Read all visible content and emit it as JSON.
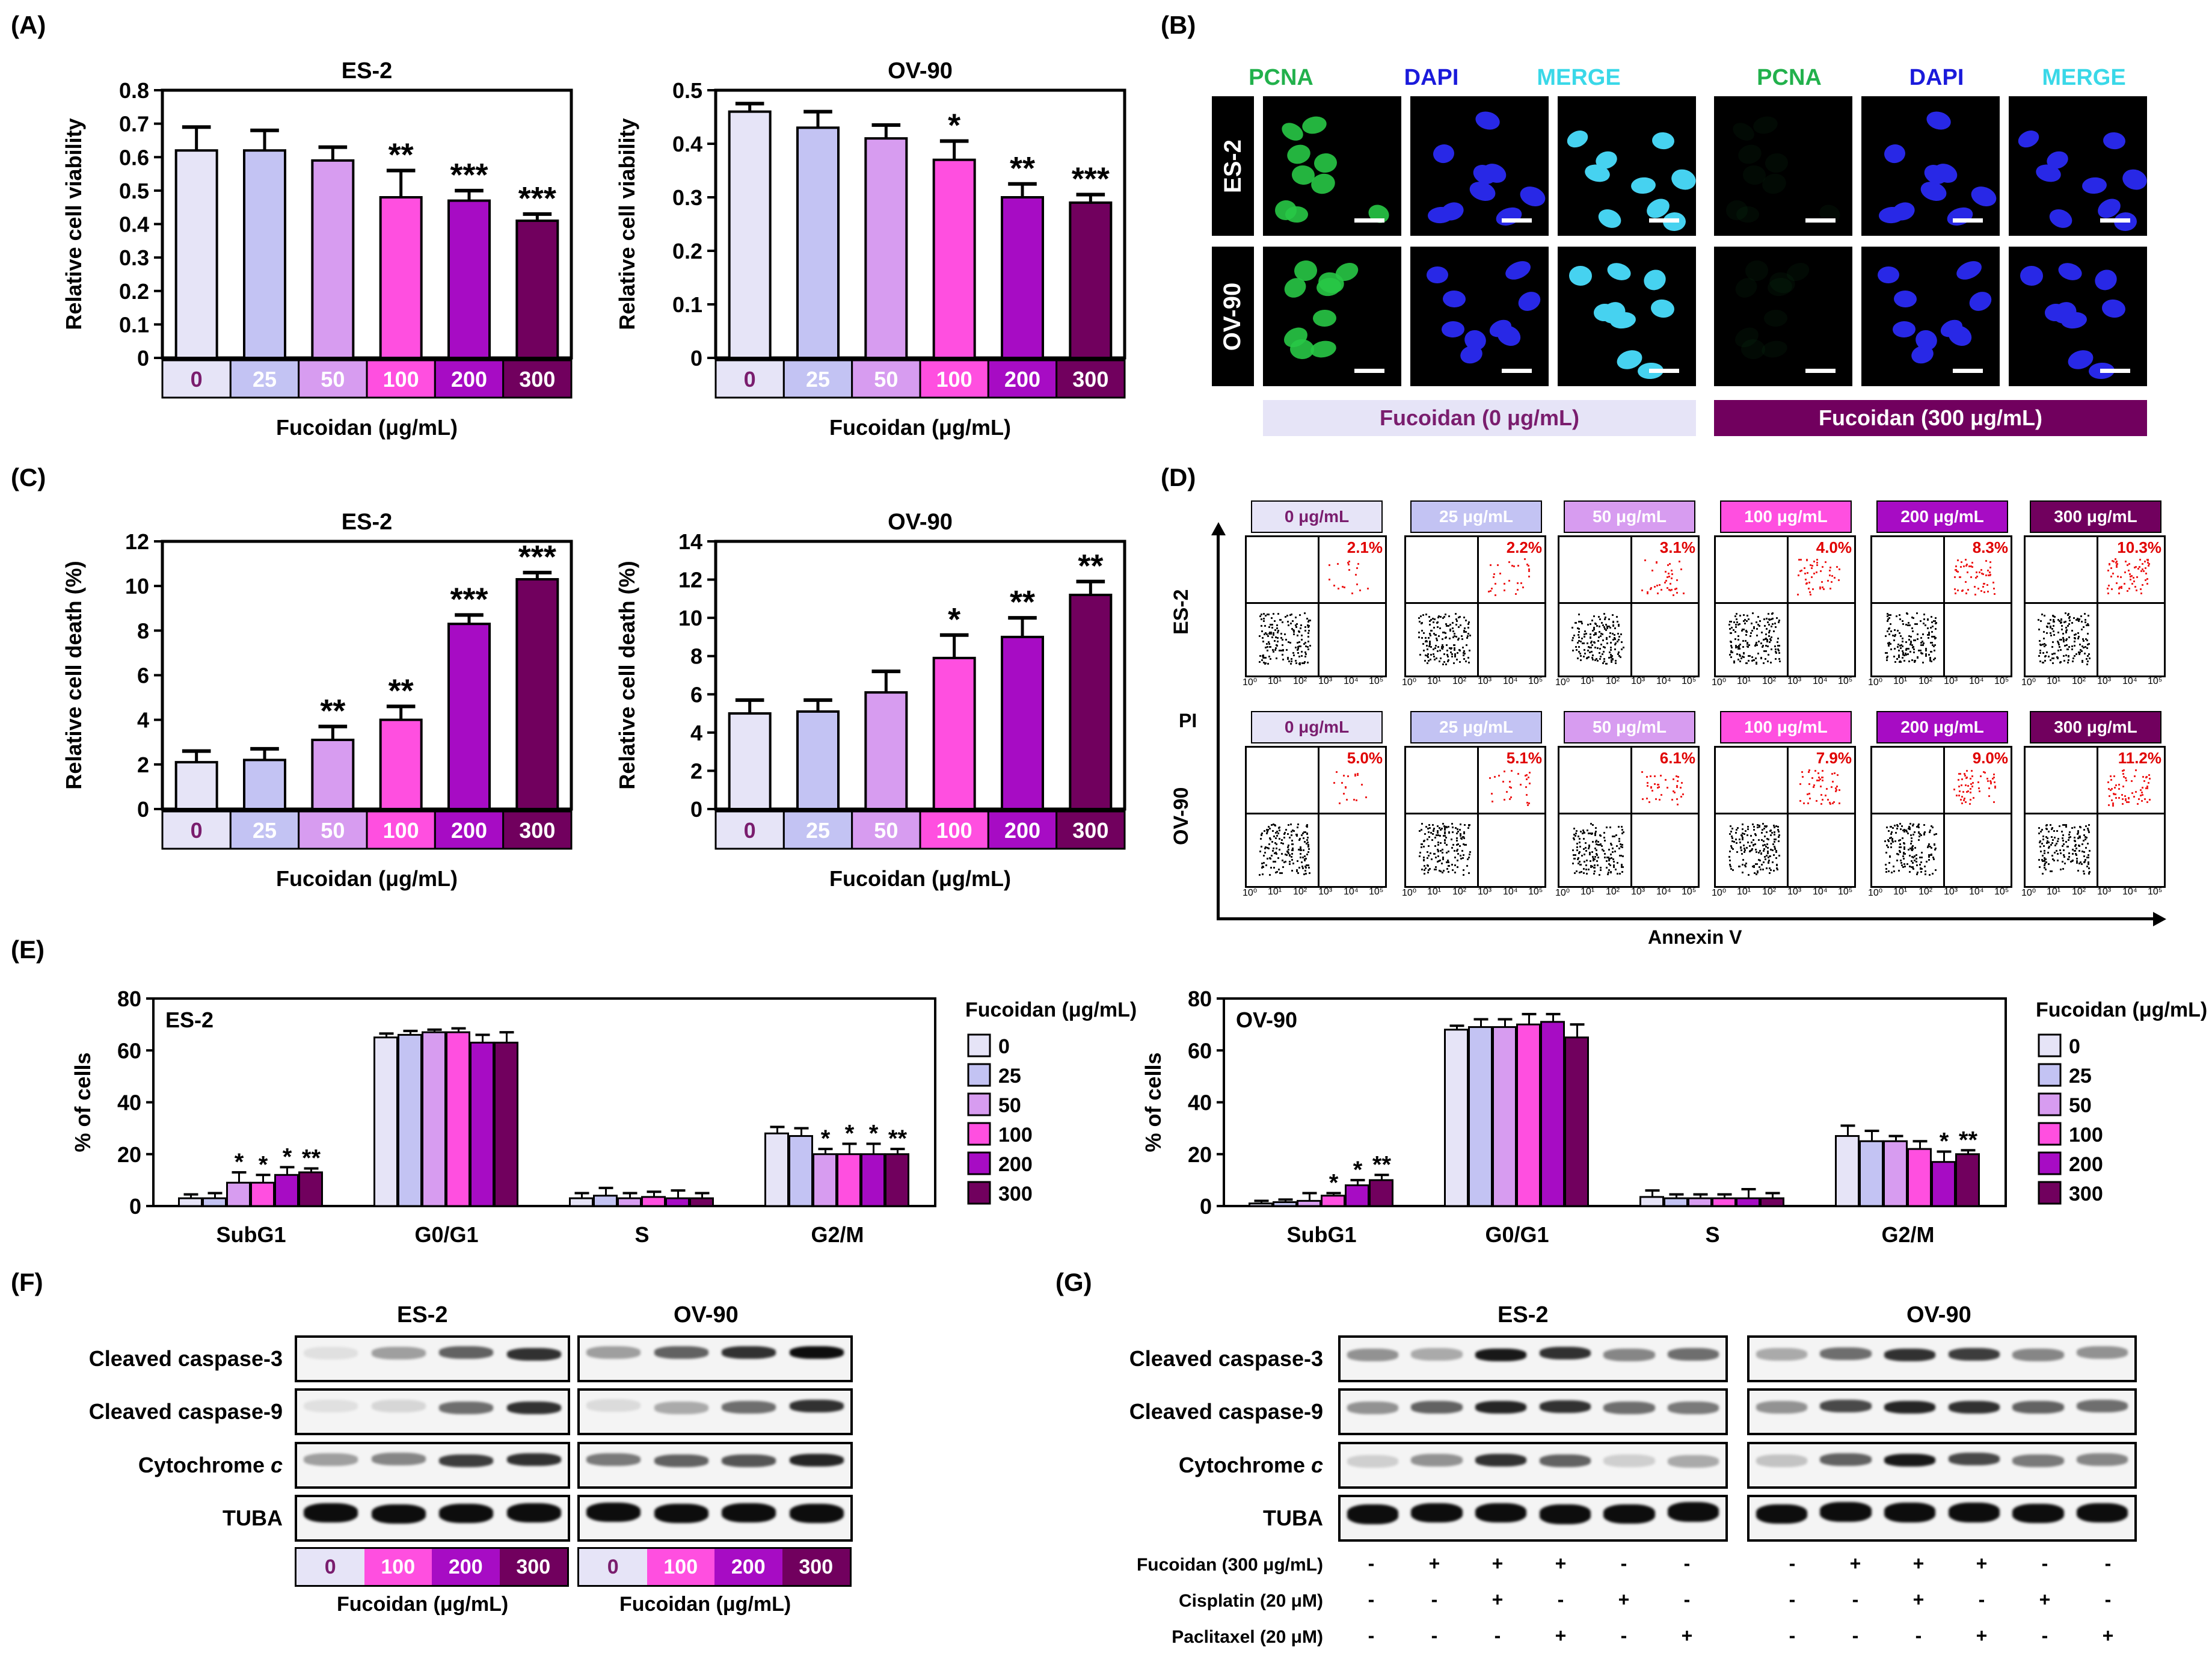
{
  "panels": {
    "A": "(A)",
    "B": "(B)",
    "C": "(C)",
    "D": "(D)",
    "E": "(E)",
    "F": "(F)",
    "G": "(G)"
  },
  "dose_colors": {
    "0": "#e6e4f7",
    "25": "#c3c3f3",
    "50": "#d79cf0",
    "100": "#ff4fe0",
    "200": "#a70cc4",
    "300": "#71005e"
  },
  "dose_label_colors": {
    "0": "#7a1d6e",
    "25": "#ffffff",
    "50": "#ffffff",
    "100": "#ffffff",
    "200": "#ffffff",
    "300": "#ffffff"
  },
  "x_unit": "Fucoidan (μg/mL)",
  "chart_data": [
    {
      "id": "A-ES2",
      "type": "bar",
      "title": "ES-2",
      "ylabel": "Relative cell viability",
      "xlabel": "Fucoidan (μg/mL)",
      "categories": [
        "0",
        "25",
        "50",
        "100",
        "200",
        "300"
      ],
      "values": [
        0.62,
        0.62,
        0.59,
        0.48,
        0.47,
        0.41
      ],
      "errors": [
        0.07,
        0.06,
        0.04,
        0.08,
        0.03,
        0.02
      ],
      "significance": [
        "",
        "",
        "",
        "**",
        "***",
        "***"
      ],
      "ylim": [
        0,
        0.8
      ],
      "ticks": [
        "0",
        "0.1",
        "0.2",
        "0.3",
        "0.4",
        "0.5",
        "0.6",
        "0.7",
        "0.8"
      ]
    },
    {
      "id": "A-OV90",
      "type": "bar",
      "title": "OV-90",
      "ylabel": "Relative cell viability",
      "xlabel": "Fucoidan (μg/mL)",
      "categories": [
        "0",
        "25",
        "50",
        "100",
        "200",
        "300"
      ],
      "values": [
        0.46,
        0.43,
        0.41,
        0.37,
        0.3,
        0.29
      ],
      "errors": [
        0.015,
        0.03,
        0.025,
        0.035,
        0.025,
        0.015
      ],
      "significance": [
        "",
        "",
        "",
        "*",
        "**",
        "***"
      ],
      "ylim": [
        0,
        0.5
      ],
      "ticks": [
        "0",
        "0.1",
        "0.2",
        "0.3",
        "0.4",
        "0.5"
      ]
    },
    {
      "id": "C-ES2",
      "type": "bar",
      "title": "ES-2",
      "ylabel": "Relative cell death (%)",
      "xlabel": "Fucoidan (μg/mL)",
      "categories": [
        "0",
        "25",
        "50",
        "100",
        "200",
        "300"
      ],
      "values": [
        2.1,
        2.2,
        3.1,
        4.0,
        8.3,
        10.3
      ],
      "errors": [
        0.5,
        0.5,
        0.6,
        0.6,
        0.4,
        0.3
      ],
      "significance": [
        "",
        "",
        "**",
        "**",
        "***",
        "***"
      ],
      "ylim": [
        0,
        12
      ],
      "ticks": [
        "0",
        "2",
        "4",
        "6",
        "8",
        "10",
        "12"
      ]
    },
    {
      "id": "C-OV90",
      "type": "bar",
      "title": "OV-90",
      "ylabel": "Relative cell death (%)",
      "xlabel": "Fucoidan (μg/mL)",
      "categories": [
        "0",
        "25",
        "50",
        "100",
        "200",
        "300"
      ],
      "values": [
        5.0,
        5.1,
        6.1,
        7.9,
        9.0,
        11.2
      ],
      "errors": [
        0.7,
        0.6,
        1.1,
        1.2,
        1.0,
        0.7
      ],
      "significance": [
        "",
        "",
        "",
        "*",
        "**",
        "**"
      ],
      "ylim": [
        0,
        14
      ],
      "ticks": [
        "0",
        "2",
        "4",
        "6",
        "8",
        "10",
        "12",
        "14"
      ]
    },
    {
      "id": "E-ES2",
      "type": "bar",
      "title": "ES-2",
      "ylabel": "% of cells",
      "groups": [
        "SubG1",
        "G0/G1",
        "S",
        "G2/M"
      ],
      "legend_title": "Fucoidan (μg/mL)",
      "series": [
        {
          "name": "0",
          "values": [
            3,
            65,
            3,
            28
          ],
          "errors": [
            1.5,
            1.5,
            2,
            2.5
          ]
        },
        {
          "name": "25",
          "values": [
            3,
            66,
            4,
            27
          ],
          "errors": [
            2,
            1.5,
            3,
            3
          ]
        },
        {
          "name": "50",
          "values": [
            9,
            67,
            3,
            20
          ],
          "errors": [
            4,
            1,
            2,
            2
          ]
        },
        {
          "name": "100",
          "values": [
            9,
            67,
            3.5,
            20
          ],
          "errors": [
            3,
            1.5,
            2,
            4
          ]
        },
        {
          "name": "200",
          "values": [
            12,
            63,
            3,
            20
          ],
          "errors": [
            3,
            3,
            3,
            4
          ]
        },
        {
          "name": "300",
          "values": [
            13,
            63,
            3,
            20
          ],
          "errors": [
            1.5,
            4,
            2,
            2
          ]
        }
      ],
      "significance": [
        [
          "",
          "",
          "*",
          "*",
          "*",
          "**"
        ],
        [
          "",
          "",
          "",
          "",
          "",
          ""
        ],
        [
          "",
          "",
          "",
          "",
          "",
          ""
        ],
        [
          "",
          "",
          "*",
          "*",
          "*",
          "**"
        ]
      ],
      "ylim": [
        0,
        80
      ],
      "ticks": [
        "0",
        "20",
        "40",
        "60",
        "80"
      ]
    },
    {
      "id": "E-OV90",
      "type": "bar",
      "title": "OV-90",
      "ylabel": "% of cells",
      "groups": [
        "SubG1",
        "G0/G1",
        "S",
        "G2/M"
      ],
      "legend_title": "Fucoidan (μg/mL)",
      "series": [
        {
          "name": "0",
          "values": [
            1,
            68,
            3.5,
            27
          ],
          "errors": [
            1,
            1.5,
            2.5,
            4
          ]
        },
        {
          "name": "25",
          "values": [
            1.5,
            69,
            3,
            25
          ],
          "errors": [
            1,
            3,
            1.5,
            4
          ]
        },
        {
          "name": "50",
          "values": [
            2,
            69,
            3,
            25
          ],
          "errors": [
            3,
            3,
            1.5,
            2
          ]
        },
        {
          "name": "100",
          "values": [
            4,
            70,
            3,
            22
          ],
          "errors": [
            1,
            4,
            1.5,
            3
          ]
        },
        {
          "name": "200",
          "values": [
            8,
            71,
            3,
            17
          ],
          "errors": [
            2,
            3,
            3.5,
            4
          ]
        },
        {
          "name": "300",
          "values": [
            10,
            65,
            3,
            20
          ],
          "errors": [
            2,
            5,
            2,
            1.5
          ]
        }
      ],
      "significance": [
        [
          "",
          "",
          "",
          "*",
          "*",
          "**"
        ],
        [
          "",
          "",
          "",
          "",
          "",
          ""
        ],
        [
          "",
          "",
          "",
          "",
          "",
          ""
        ],
        [
          "",
          "",
          "",
          "",
          "*",
          "**"
        ]
      ],
      "ylim": [
        0,
        80
      ],
      "ticks": [
        "0",
        "20",
        "40",
        "60",
        "80"
      ]
    }
  ],
  "panel_b": {
    "channels": [
      "PCNA",
      "DAPI",
      "MERGE",
      "PCNA",
      "DAPI",
      "MERGE"
    ],
    "rows": [
      "ES-2",
      "OV-90"
    ],
    "dose_bars": [
      "Fucoidan (0 μg/mL)",
      "Fucoidan (300 μg/mL)"
    ]
  },
  "panel_d": {
    "rows": [
      "ES-2",
      "OV-90"
    ],
    "heads": [
      "0 μg/mL",
      "25 μg/mL",
      "50 μg/mL",
      "100 μg/mL",
      "200 μg/mL",
      "300 μg/mL"
    ],
    "percents": [
      [
        "2.1%",
        "2.2%",
        "3.1%",
        "4.0%",
        "8.3%",
        "10.3%"
      ],
      [
        "5.0%",
        "5.1%",
        "6.1%",
        "7.9%",
        "9.0%",
        "11.2%"
      ]
    ],
    "ylabel": "PI",
    "xlabel": "Annexin V",
    "tick_labels": [
      "10⁰",
      "10¹",
      "10²",
      "10³",
      "10⁴",
      "10⁵"
    ]
  },
  "panel_f": {
    "titles": [
      "ES-2",
      "OV-90"
    ],
    "rows": [
      "Cleaved caspase-3",
      "Cleaved caspase-9",
      "Cytochrome ",
      "TUBA"
    ],
    "italic_c": "c",
    "lanes": [
      "0",
      "100",
      "200",
      "300"
    ],
    "xlabel": "Fucoidan (μg/mL)"
  },
  "panel_g": {
    "titles": [
      "ES-2",
      "OV-90"
    ],
    "rows": [
      "Cleaved caspase-3",
      "Cleaved caspase-9",
      "Cytochrome ",
      "TUBA"
    ],
    "italic_c": "c",
    "treatments": [
      "Fucoidan (300 μg/mL)",
      "Cisplatin (20 μM)",
      "Paclitaxel (20 μM)"
    ],
    "signs": [
      [
        "-",
        "+",
        "+",
        "+",
        "-",
        "-"
      ],
      [
        "-",
        "-",
        "+",
        "-",
        "+",
        "-"
      ],
      [
        "-",
        "-",
        "-",
        "+",
        "-",
        "+"
      ]
    ]
  }
}
